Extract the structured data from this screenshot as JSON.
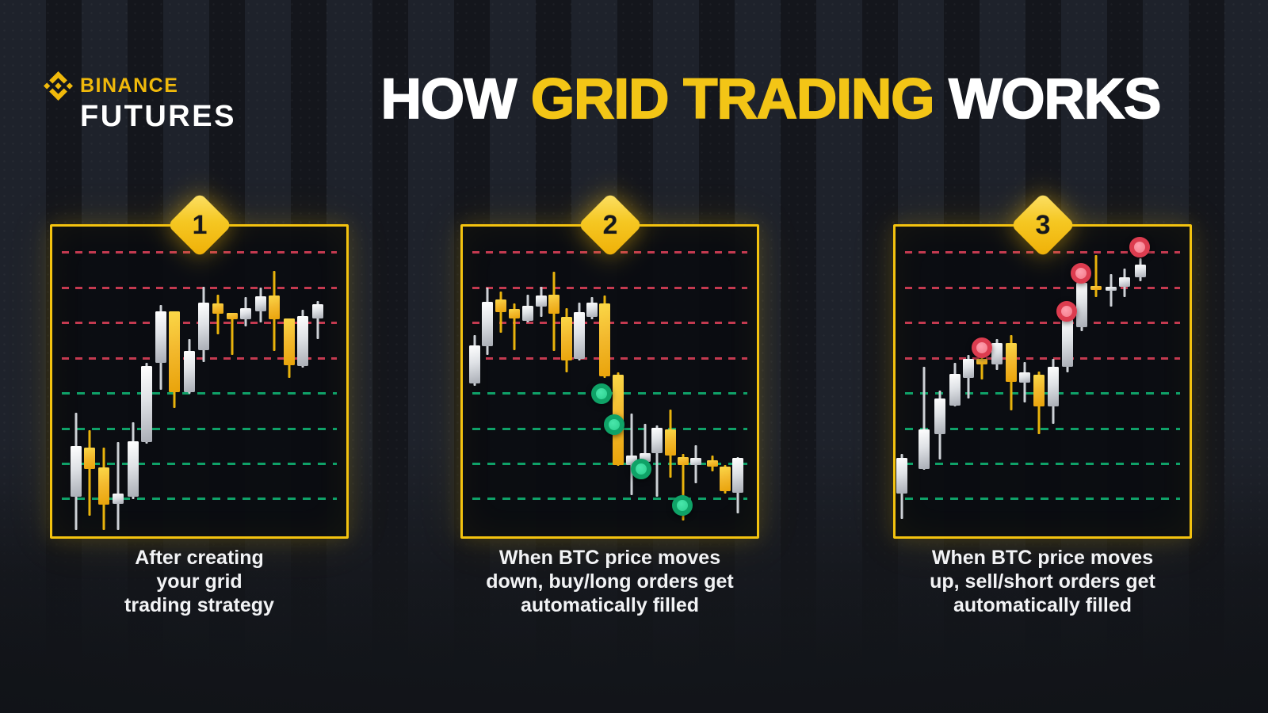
{
  "logo": {
    "brand": "BINANCE",
    "product": "FUTURES",
    "icon": "binance-diamond-logo-icon"
  },
  "title": {
    "part1": "HOW ",
    "highlight": "GRID TRADING",
    "part2": " WORKS"
  },
  "colors": {
    "brand_yellow": "#F0B90B",
    "title_highlight": "#F3C516",
    "panel_border": "#F4C30F",
    "grid_red": "#C43A50",
    "grid_green": "#0FA168",
    "candle_white": "#E6E8EB",
    "candle_yellow": "#F3BA2F",
    "buy_marker_fill": "#2FD795",
    "buy_marker_ring": "#0FA267",
    "sell_marker_fill": "#F5818F",
    "sell_marker_ring": "#DC3C4F",
    "background": "#171A21",
    "caption_text": "#F2F3F5"
  },
  "panels": [
    {
      "badge": "1",
      "caption": "After creating\nyour grid\ntrading strategy"
    },
    {
      "badge": "2",
      "caption": "When BTC price moves\ndown, buy/long orders get\nautomatically filled"
    },
    {
      "badge": "3",
      "caption": "When BTC price moves\nup, sell/short orders get\nautomatically filled"
    }
  ],
  "chart_data": [
    {
      "type": "candlestick",
      "title": "Step 1 — grid created over price range",
      "grid_lines": [
        {
          "y": 0.079,
          "color": "red"
        },
        {
          "y": 0.194,
          "color": "red"
        },
        {
          "y": 0.307,
          "color": "red"
        },
        {
          "y": 0.422,
          "color": "red"
        },
        {
          "y": 0.535,
          "color": "green"
        },
        {
          "y": 0.65,
          "color": "green"
        },
        {
          "y": 0.762,
          "color": "green"
        },
        {
          "y": 0.875,
          "color": "green"
        }
      ],
      "candles": [
        {
          "x": 0.08,
          "c": "white",
          "bt": 0.708,
          "bb": 0.872,
          "wt": 0.601,
          "wb": 0.98
        },
        {
          "x": 0.127,
          "c": "yellow",
          "bt": 0.714,
          "bb": 0.783,
          "wt": 0.657,
          "wb": 0.934
        },
        {
          "x": 0.175,
          "c": "yellow",
          "bt": 0.777,
          "bb": 0.898,
          "wt": 0.714,
          "wb": 0.98
        },
        {
          "x": 0.225,
          "c": "white",
          "bt": 0.862,
          "bb": 0.895,
          "wt": 0.696,
          "wb": 0.98
        },
        {
          "x": 0.274,
          "c": "white",
          "bt": 0.693,
          "bb": 0.872,
          "wt": 0.632,
          "wb": 0.88
        },
        {
          "x": 0.321,
          "c": "white",
          "bt": 0.45,
          "bb": 0.696,
          "wt": 0.44,
          "wb": 0.701
        },
        {
          "x": 0.369,
          "c": "white",
          "bt": 0.274,
          "bb": 0.44,
          "wt": 0.253,
          "wb": 0.527
        },
        {
          "x": 0.416,
          "c": "yellow",
          "bt": 0.274,
          "bb": 0.535,
          "wt": 0.274,
          "wb": 0.586
        },
        {
          "x": 0.466,
          "c": "white",
          "bt": 0.402,
          "bb": 0.535,
          "wt": 0.363,
          "wb": 0.54
        },
        {
          "x": 0.514,
          "c": "white",
          "bt": 0.246,
          "bb": 0.399,
          "wt": 0.194,
          "wb": 0.437
        },
        {
          "x": 0.563,
          "c": "yellow",
          "bt": 0.248,
          "bb": 0.281,
          "wt": 0.22,
          "wb": 0.348
        },
        {
          "x": 0.612,
          "c": "yellow",
          "bt": 0.279,
          "bb": 0.299,
          "wt": 0.279,
          "wb": 0.414
        },
        {
          "x": 0.659,
          "c": "white",
          "bt": 0.263,
          "bb": 0.299,
          "wt": 0.228,
          "wb": 0.322
        },
        {
          "x": 0.708,
          "c": "white",
          "bt": 0.225,
          "bb": 0.274,
          "wt": 0.197,
          "wb": 0.309
        },
        {
          "x": 0.756,
          "c": "yellow",
          "bt": 0.222,
          "bb": 0.299,
          "wt": 0.143,
          "wb": 0.402
        },
        {
          "x": 0.805,
          "c": "yellow",
          "bt": 0.297,
          "bb": 0.448,
          "wt": 0.297,
          "wb": 0.489
        },
        {
          "x": 0.852,
          "c": "white",
          "bt": 0.289,
          "bb": 0.45,
          "wt": 0.269,
          "wb": 0.455
        },
        {
          "x": 0.902,
          "c": "white",
          "bt": 0.251,
          "bb": 0.297,
          "wt": 0.24,
          "wb": 0.363
        }
      ],
      "markers": []
    },
    {
      "type": "candlestick",
      "title": "Step 2 — price falls, buy/long orders fill on green grid lines",
      "grid_lines": [
        {
          "y": 0.079,
          "color": "red"
        },
        {
          "y": 0.194,
          "color": "red"
        },
        {
          "y": 0.307,
          "color": "red"
        },
        {
          "y": 0.422,
          "color": "red"
        },
        {
          "y": 0.535,
          "color": "green"
        },
        {
          "y": 0.65,
          "color": "green"
        },
        {
          "y": 0.762,
          "color": "green"
        },
        {
          "y": 0.875,
          "color": "green"
        }
      ],
      "candles": [
        {
          "x": 0.04,
          "c": "white",
          "bt": 0.384,
          "bb": 0.506,
          "wt": 0.35,
          "wb": 0.514
        },
        {
          "x": 0.084,
          "c": "white",
          "bt": 0.243,
          "bb": 0.386,
          "wt": 0.197,
          "wb": 0.414
        },
        {
          "x": 0.129,
          "c": "yellow",
          "bt": 0.235,
          "bb": 0.276,
          "wt": 0.21,
          "wb": 0.343
        },
        {
          "x": 0.174,
          "c": "yellow",
          "bt": 0.266,
          "bb": 0.297,
          "wt": 0.248,
          "wb": 0.399
        },
        {
          "x": 0.221,
          "c": "white",
          "bt": 0.256,
          "bb": 0.304,
          "wt": 0.22,
          "wb": 0.309
        },
        {
          "x": 0.266,
          "c": "white",
          "bt": 0.222,
          "bb": 0.258,
          "wt": 0.194,
          "wb": 0.292
        },
        {
          "x": 0.311,
          "c": "yellow",
          "bt": 0.22,
          "bb": 0.281,
          "wt": 0.146,
          "wb": 0.402
        },
        {
          "x": 0.353,
          "c": "yellow",
          "bt": 0.292,
          "bb": 0.432,
          "wt": 0.263,
          "wb": 0.471
        },
        {
          "x": 0.396,
          "c": "white",
          "bt": 0.276,
          "bb": 0.427,
          "wt": 0.246,
          "wb": 0.432
        },
        {
          "x": 0.439,
          "c": "white",
          "bt": 0.246,
          "bb": 0.292,
          "wt": 0.228,
          "wb": 0.299
        },
        {
          "x": 0.483,
          "c": "yellow",
          "bt": 0.248,
          "bb": 0.483,
          "wt": 0.222,
          "wb": 0.489
        },
        {
          "x": 0.528,
          "c": "yellow",
          "bt": 0.478,
          "bb": 0.77,
          "wt": 0.471,
          "wb": 0.772
        },
        {
          "x": 0.573,
          "c": "white",
          "bt": 0.739,
          "bb": 0.77,
          "wt": 0.604,
          "wb": 0.867
        },
        {
          "x": 0.62,
          "c": "white",
          "bt": 0.731,
          "bb": 0.76,
          "wt": 0.637,
          "wb": 0.772
        },
        {
          "x": 0.661,
          "c": "white",
          "bt": 0.65,
          "bb": 0.731,
          "wt": 0.642,
          "wb": 0.872
        },
        {
          "x": 0.706,
          "c": "yellow",
          "bt": 0.655,
          "bb": 0.739,
          "wt": 0.591,
          "wb": 0.811
        },
        {
          "x": 0.748,
          "c": "yellow",
          "bt": 0.744,
          "bb": 0.77,
          "wt": 0.734,
          "wb": 0.949
        },
        {
          "x": 0.793,
          "c": "white",
          "bt": 0.747,
          "bb": 0.77,
          "wt": 0.706,
          "wb": 0.829
        },
        {
          "x": 0.849,
          "c": "yellow",
          "bt": 0.754,
          "bb": 0.775,
          "wt": 0.739,
          "wb": 0.79
        },
        {
          "x": 0.892,
          "c": "yellow",
          "bt": 0.775,
          "bb": 0.854,
          "wt": 0.77,
          "wb": 0.862
        },
        {
          "x": 0.934,
          "c": "white",
          "bt": 0.747,
          "bb": 0.859,
          "wt": 0.744,
          "wb": 0.926
        }
      ],
      "markers": [
        {
          "x": 0.472,
          "y": 0.54,
          "color": "green"
        },
        {
          "x": 0.515,
          "y": 0.639,
          "color": "green"
        },
        {
          "x": 0.606,
          "y": 0.783,
          "color": "green"
        },
        {
          "x": 0.747,
          "y": 0.9,
          "color": "green"
        }
      ]
    },
    {
      "type": "candlestick",
      "title": "Step 3 — price rises, sell/short orders fill on red grid lines",
      "grid_lines": [
        {
          "y": 0.079,
          "color": "red"
        },
        {
          "y": 0.194,
          "color": "red"
        },
        {
          "y": 0.307,
          "color": "red"
        },
        {
          "y": 0.422,
          "color": "red"
        },
        {
          "y": 0.535,
          "color": "green"
        },
        {
          "y": 0.65,
          "color": "green"
        },
        {
          "y": 0.762,
          "color": "green"
        },
        {
          "y": 0.875,
          "color": "green"
        }
      ],
      "candles": [
        {
          "x": 0.022,
          "c": "white",
          "bt": 0.747,
          "bb": 0.862,
          "wt": 0.734,
          "wb": 0.944
        },
        {
          "x": 0.098,
          "c": "white",
          "bt": 0.655,
          "bb": 0.783,
          "wt": 0.453,
          "wb": 0.785
        },
        {
          "x": 0.152,
          "c": "white",
          "bt": 0.555,
          "bb": 0.67,
          "wt": 0.529,
          "wb": 0.752
        },
        {
          "x": 0.201,
          "c": "white",
          "bt": 0.476,
          "bb": 0.578,
          "wt": 0.44,
          "wb": 0.581
        },
        {
          "x": 0.247,
          "c": "white",
          "bt": 0.427,
          "bb": 0.489,
          "wt": 0.414,
          "wb": 0.555
        },
        {
          "x": 0.295,
          "c": "yellow",
          "bt": 0.427,
          "bb": 0.445,
          "wt": 0.414,
          "wb": 0.494
        },
        {
          "x": 0.344,
          "c": "white",
          "bt": 0.376,
          "bb": 0.445,
          "wt": 0.363,
          "wb": 0.463
        },
        {
          "x": 0.393,
          "c": "yellow",
          "bt": 0.376,
          "bb": 0.501,
          "wt": 0.35,
          "wb": 0.593
        },
        {
          "x": 0.439,
          "c": "white",
          "bt": 0.471,
          "bb": 0.504,
          "wt": 0.437,
          "wb": 0.568
        },
        {
          "x": 0.488,
          "c": "yellow",
          "bt": 0.478,
          "bb": 0.581,
          "wt": 0.468,
          "wb": 0.67
        },
        {
          "x": 0.537,
          "c": "white",
          "bt": 0.453,
          "bb": 0.581,
          "wt": 0.427,
          "wb": 0.637
        },
        {
          "x": 0.585,
          "c": "white",
          "bt": 0.299,
          "bb": 0.453,
          "wt": 0.289,
          "wb": 0.471
        },
        {
          "x": 0.634,
          "c": "white",
          "bt": 0.182,
          "bb": 0.325,
          "wt": 0.171,
          "wb": 0.338
        },
        {
          "x": 0.683,
          "c": "yellow",
          "bt": 0.192,
          "bb": 0.205,
          "wt": 0.092,
          "wb": 0.228
        },
        {
          "x": 0.734,
          "c": "white",
          "bt": 0.194,
          "bb": 0.207,
          "wt": 0.153,
          "wb": 0.258
        },
        {
          "x": 0.78,
          "c": "white",
          "bt": 0.164,
          "bb": 0.194,
          "wt": 0.136,
          "wb": 0.228
        },
        {
          "x": 0.832,
          "c": "white",
          "bt": 0.123,
          "bb": 0.164,
          "wt": 0.102,
          "wb": 0.177
        }
      ],
      "markers": [
        {
          "x": 0.293,
          "y": 0.391,
          "color": "red"
        },
        {
          "x": 0.583,
          "y": 0.274,
          "color": "red"
        },
        {
          "x": 0.631,
          "y": 0.151,
          "color": "red"
        },
        {
          "x": 0.829,
          "y": 0.066,
          "color": "red"
        }
      ]
    }
  ]
}
